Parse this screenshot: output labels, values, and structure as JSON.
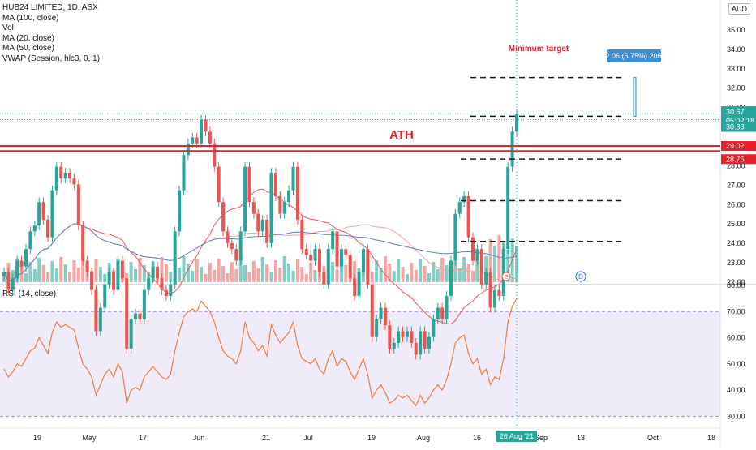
{
  "legend": {
    "symbol": "HUB24 LIMITED, 1D, ASX",
    "items": [
      "MA (100, close)",
      "Vol",
      "MA (20, close)",
      "MA (50, close)",
      "VWAP (Session, hlc3, 0, 1)"
    ]
  },
  "currency": "AUD",
  "rsi_label": "RSI (14, close)",
  "colors": {
    "up": "#26a69a",
    "down": "#ef5350",
    "resistance": "#e8202a",
    "rsi_line": "#f27a40",
    "rsi_band": "#7e57c2",
    "ma20": "#ef5350",
    "ma50": "#f4a3a0",
    "ma100": "#5b7fc7",
    "current": "#26a69a",
    "annotation_blue": "#3d8fd1"
  },
  "annotations": {
    "ath": "ATH",
    "minimum_target": "Minimum target",
    "measure_box": "2.06 (6.75%) 206",
    "earnings_marker": "E",
    "dividend_marker": "D"
  },
  "price_badges": {
    "last": "30.67",
    "countdown": "05:02:18",
    "line_value": "30.38",
    "resistance_top": "29.02",
    "resistance_bottom": "28.76"
  },
  "crosshair_date": "26 Aug '21",
  "chart_data": {
    "type": "candlestick",
    "price_axis": {
      "ticks": [
        "35.00",
        "34.00",
        "33.00",
        "32.00",
        "31.00",
        "30.00",
        "29.00",
        "28.00",
        "27.00",
        "26.00",
        "25.00",
        "24.00",
        "23.00",
        "22.00"
      ],
      "range": [
        22.0,
        35.5
      ]
    },
    "rsi_axis": {
      "ticks": [
        "80.00",
        "70.00",
        "60.00",
        "50.00",
        "40.00",
        "30.00"
      ],
      "band": [
        30,
        70
      ],
      "range": [
        27,
        80
      ]
    },
    "x_axis": {
      "labels": [
        "19",
        "May",
        "17",
        "Jun",
        "21",
        "Jul",
        "19",
        "Aug",
        "16",
        "Sep",
        "13",
        "Oct",
        "18"
      ]
    },
    "resistance_levels": [
      29.02,
      28.76
    ],
    "current_price": 30.67,
    "dashed_levels": [
      32.55,
      30.55,
      28.35,
      26.2,
      24.1
    ],
    "rsi": [
      48,
      45,
      47,
      50,
      49,
      52,
      55,
      56,
      60,
      57,
      54,
      62,
      66,
      64,
      65,
      64,
      63,
      56,
      50,
      48,
      45,
      38,
      42,
      46,
      48,
      45,
      50,
      47,
      35,
      40,
      41,
      40,
      45,
      47,
      49,
      47,
      45,
      44,
      46,
      55,
      62,
      68,
      70,
      71,
      70,
      74,
      72,
      70,
      66,
      60,
      55,
      53,
      52,
      50,
      55,
      66,
      60,
      58,
      55,
      57,
      53,
      65,
      61,
      58,
      60,
      62,
      66,
      57,
      52,
      51,
      50,
      52,
      48,
      46,
      52,
      55,
      49,
      52,
      51,
      47,
      44,
      48,
      52,
      46,
      37,
      40,
      42,
      39,
      35,
      36,
      38,
      37,
      38,
      36,
      34,
      38,
      35,
      37,
      40,
      42,
      40,
      44,
      50,
      58,
      60,
      61,
      54,
      50,
      52,
      46,
      48,
      42,
      45,
      44,
      52,
      66,
      72,
      75
    ]
  }
}
